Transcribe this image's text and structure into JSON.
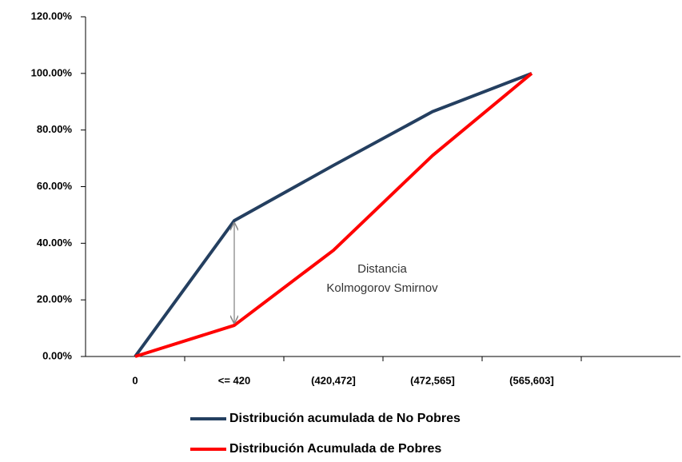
{
  "chart_data": {
    "type": "line",
    "categories": [
      "0",
      "<= 420",
      "(420,472]",
      "(472,565]",
      "(565,603]",
      null
    ],
    "series": [
      {
        "name": "Distribución acumulada de No Pobres",
        "color": "#243f60",
        "values": [
          0,
          48,
          67.5,
          86.5,
          100,
          null
        ]
      },
      {
        "name": "Distribución Acumulada de Pobres",
        "color": "#ff0000",
        "values": [
          0,
          11,
          37.5,
          71,
          100,
          null
        ]
      }
    ],
    "ylim": [
      0,
      120
    ],
    "yticks": [
      {
        "value": 0,
        "label": "0.00%"
      },
      {
        "value": 20,
        "label": "20.00%"
      },
      {
        "value": 40,
        "label": "40.00%"
      },
      {
        "value": 60,
        "label": "60.00%"
      },
      {
        "value": 80,
        "label": "80.00%"
      },
      {
        "value": 100,
        "label": "100.00%"
      },
      {
        "value": 120,
        "label": "120.00%"
      }
    ],
    "annotations": [
      "Distancia",
      "Kolmogorov Smirnov"
    ],
    "legend": "bottom"
  }
}
